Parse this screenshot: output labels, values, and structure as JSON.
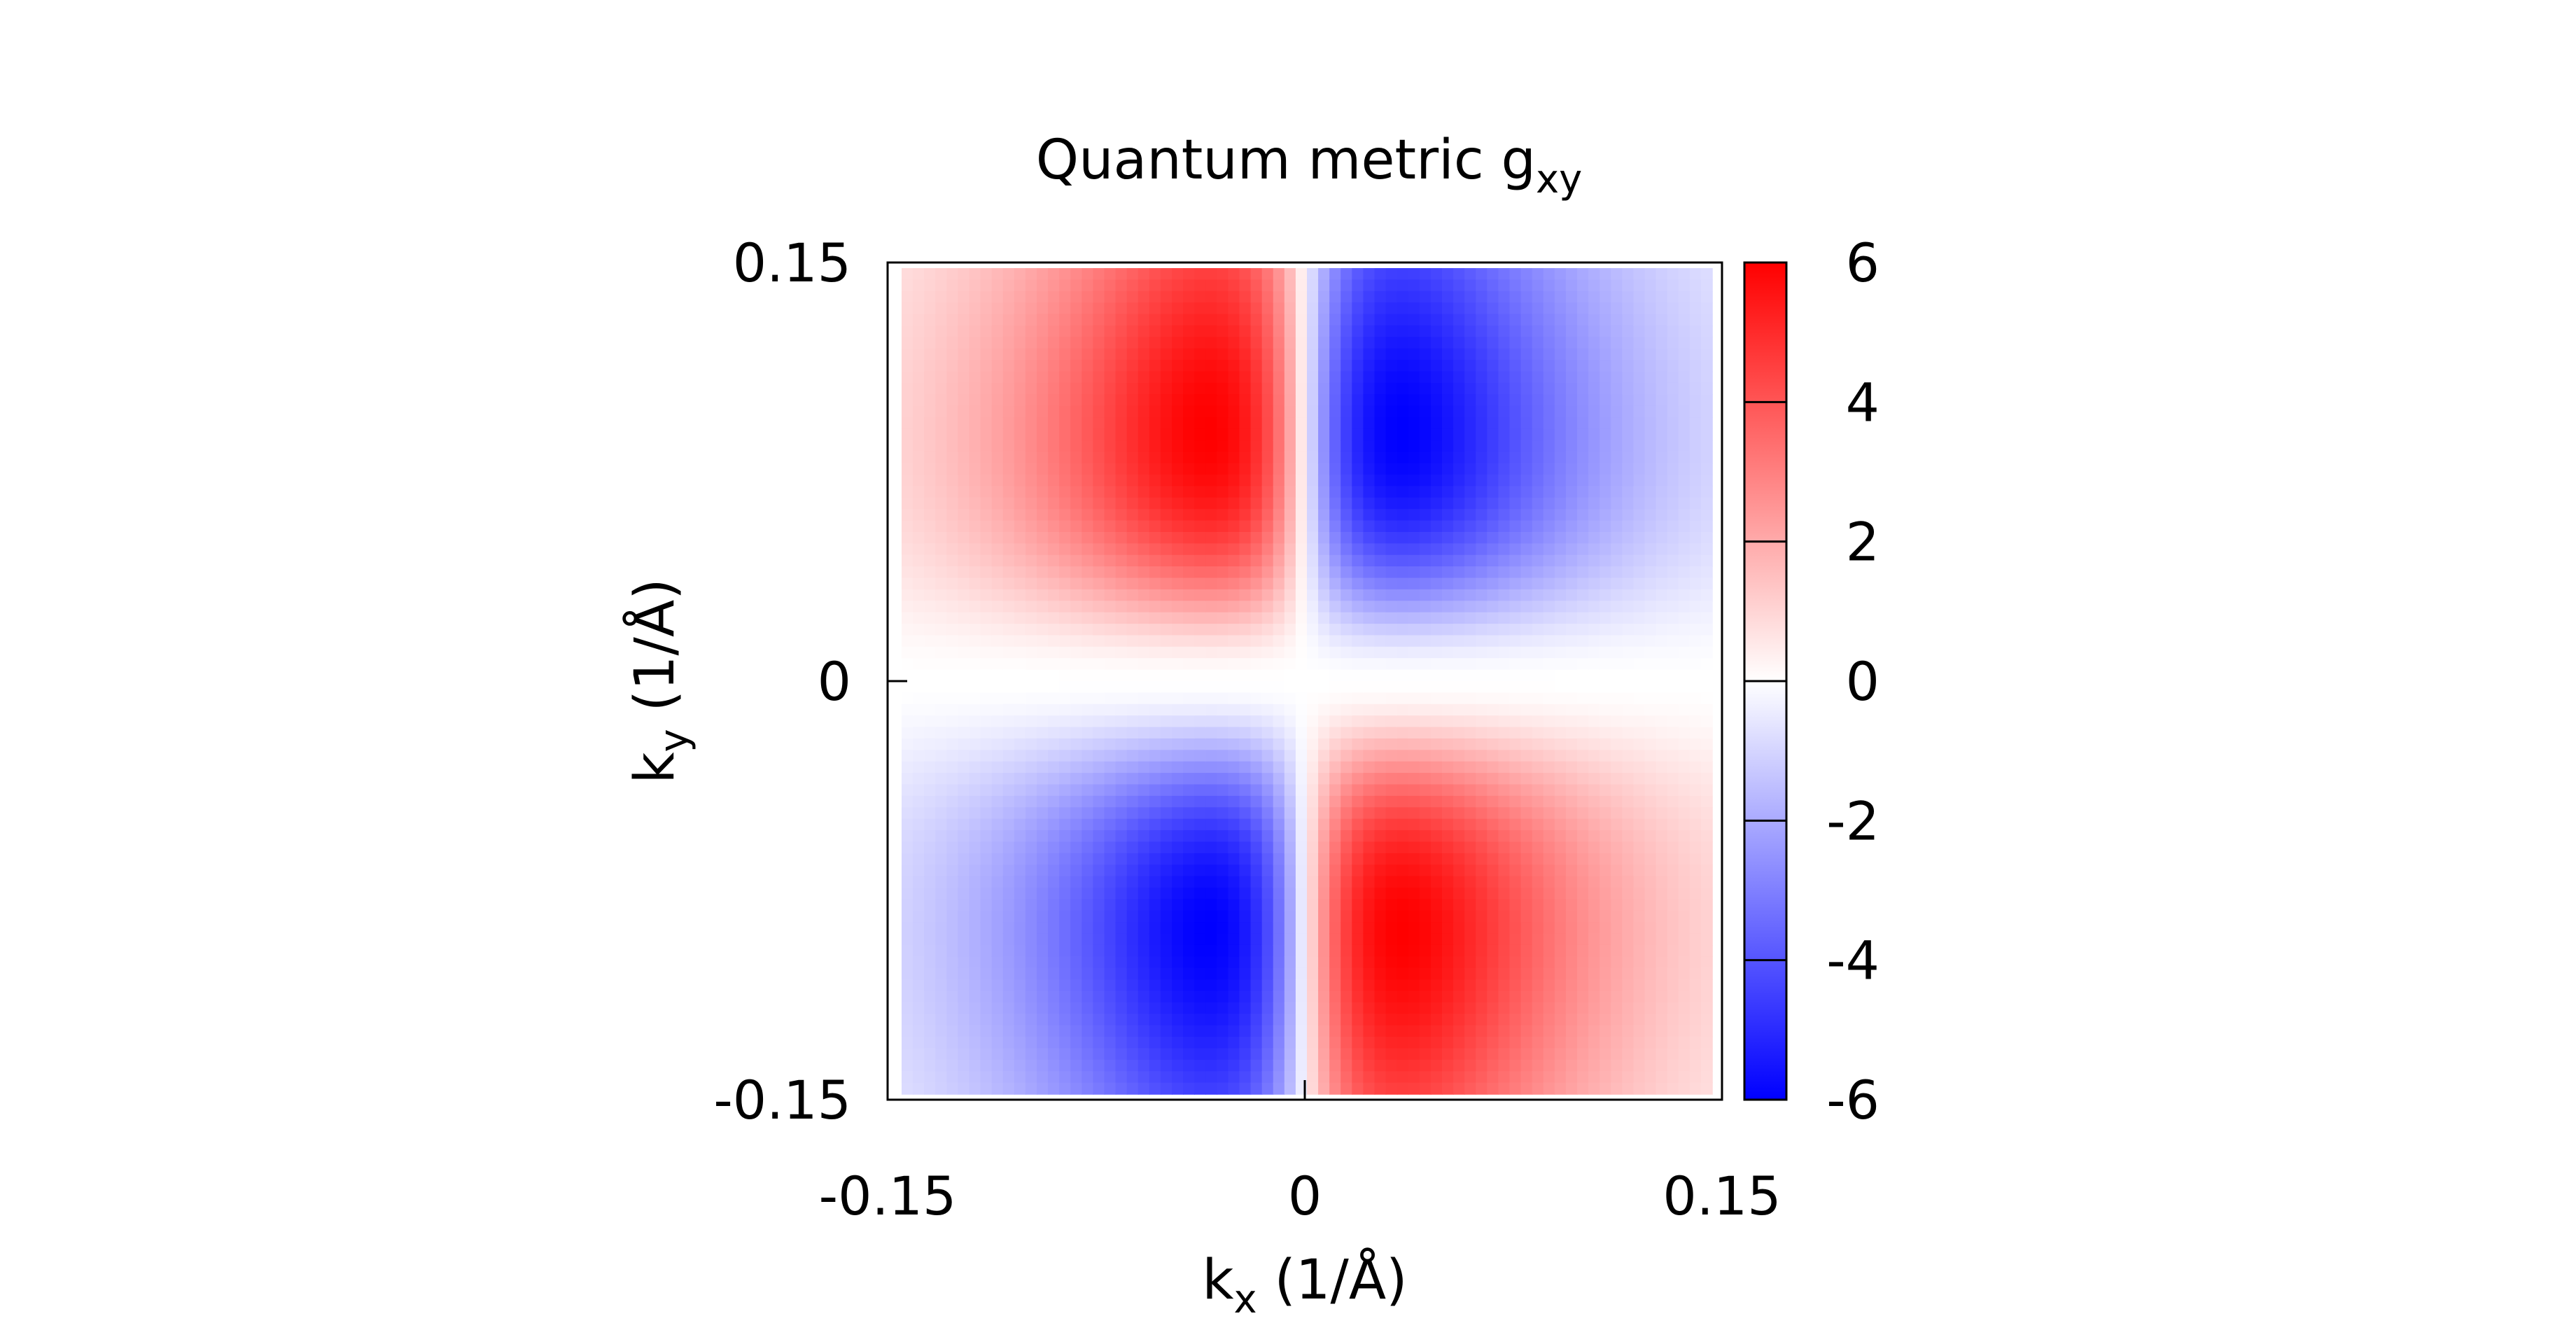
{
  "chart_data": {
    "type": "heatmap",
    "title": {
      "main": "Quantum metric g",
      "subscript": "xy"
    },
    "xlabel": {
      "prefix": "k",
      "subscript": "x",
      "suffix": " (1/Å)"
    },
    "ylabel": {
      "prefix": "k",
      "subscript": "y",
      "suffix": " (1/Å)"
    },
    "xlim": [
      -0.15,
      0.15
    ],
    "ylim": [
      -0.15,
      0.15
    ],
    "x_ticks": [
      "-0.15",
      "0",
      "0.15"
    ],
    "x_tick_values": [
      -0.15,
      0,
      0.15
    ],
    "y_ticks": [
      "-0.15",
      "0",
      "0.15"
    ],
    "y_tick_values": [
      -0.15,
      0,
      0.15
    ],
    "colorbar": {
      "min": -6,
      "max": 6,
      "ticks": [
        "6",
        "4",
        "2",
        "0",
        "-2",
        "-4",
        "-6"
      ],
      "tick_values": [
        6,
        4,
        2,
        0,
        -2,
        -4,
        -6
      ],
      "colors": {
        "negative": "#0000ff",
        "zero": "#ffffff",
        "positive": "#ff0000"
      }
    },
    "peak_value": 6,
    "peak_location": [
      0.035,
      0.09
    ],
    "description_field": {
      "form": "antisymmetric quadrupole: sign(kx*ky) negative in first/third quadrants",
      "grid_n": 72
    },
    "grid": false,
    "legend": "colorbar right"
  }
}
